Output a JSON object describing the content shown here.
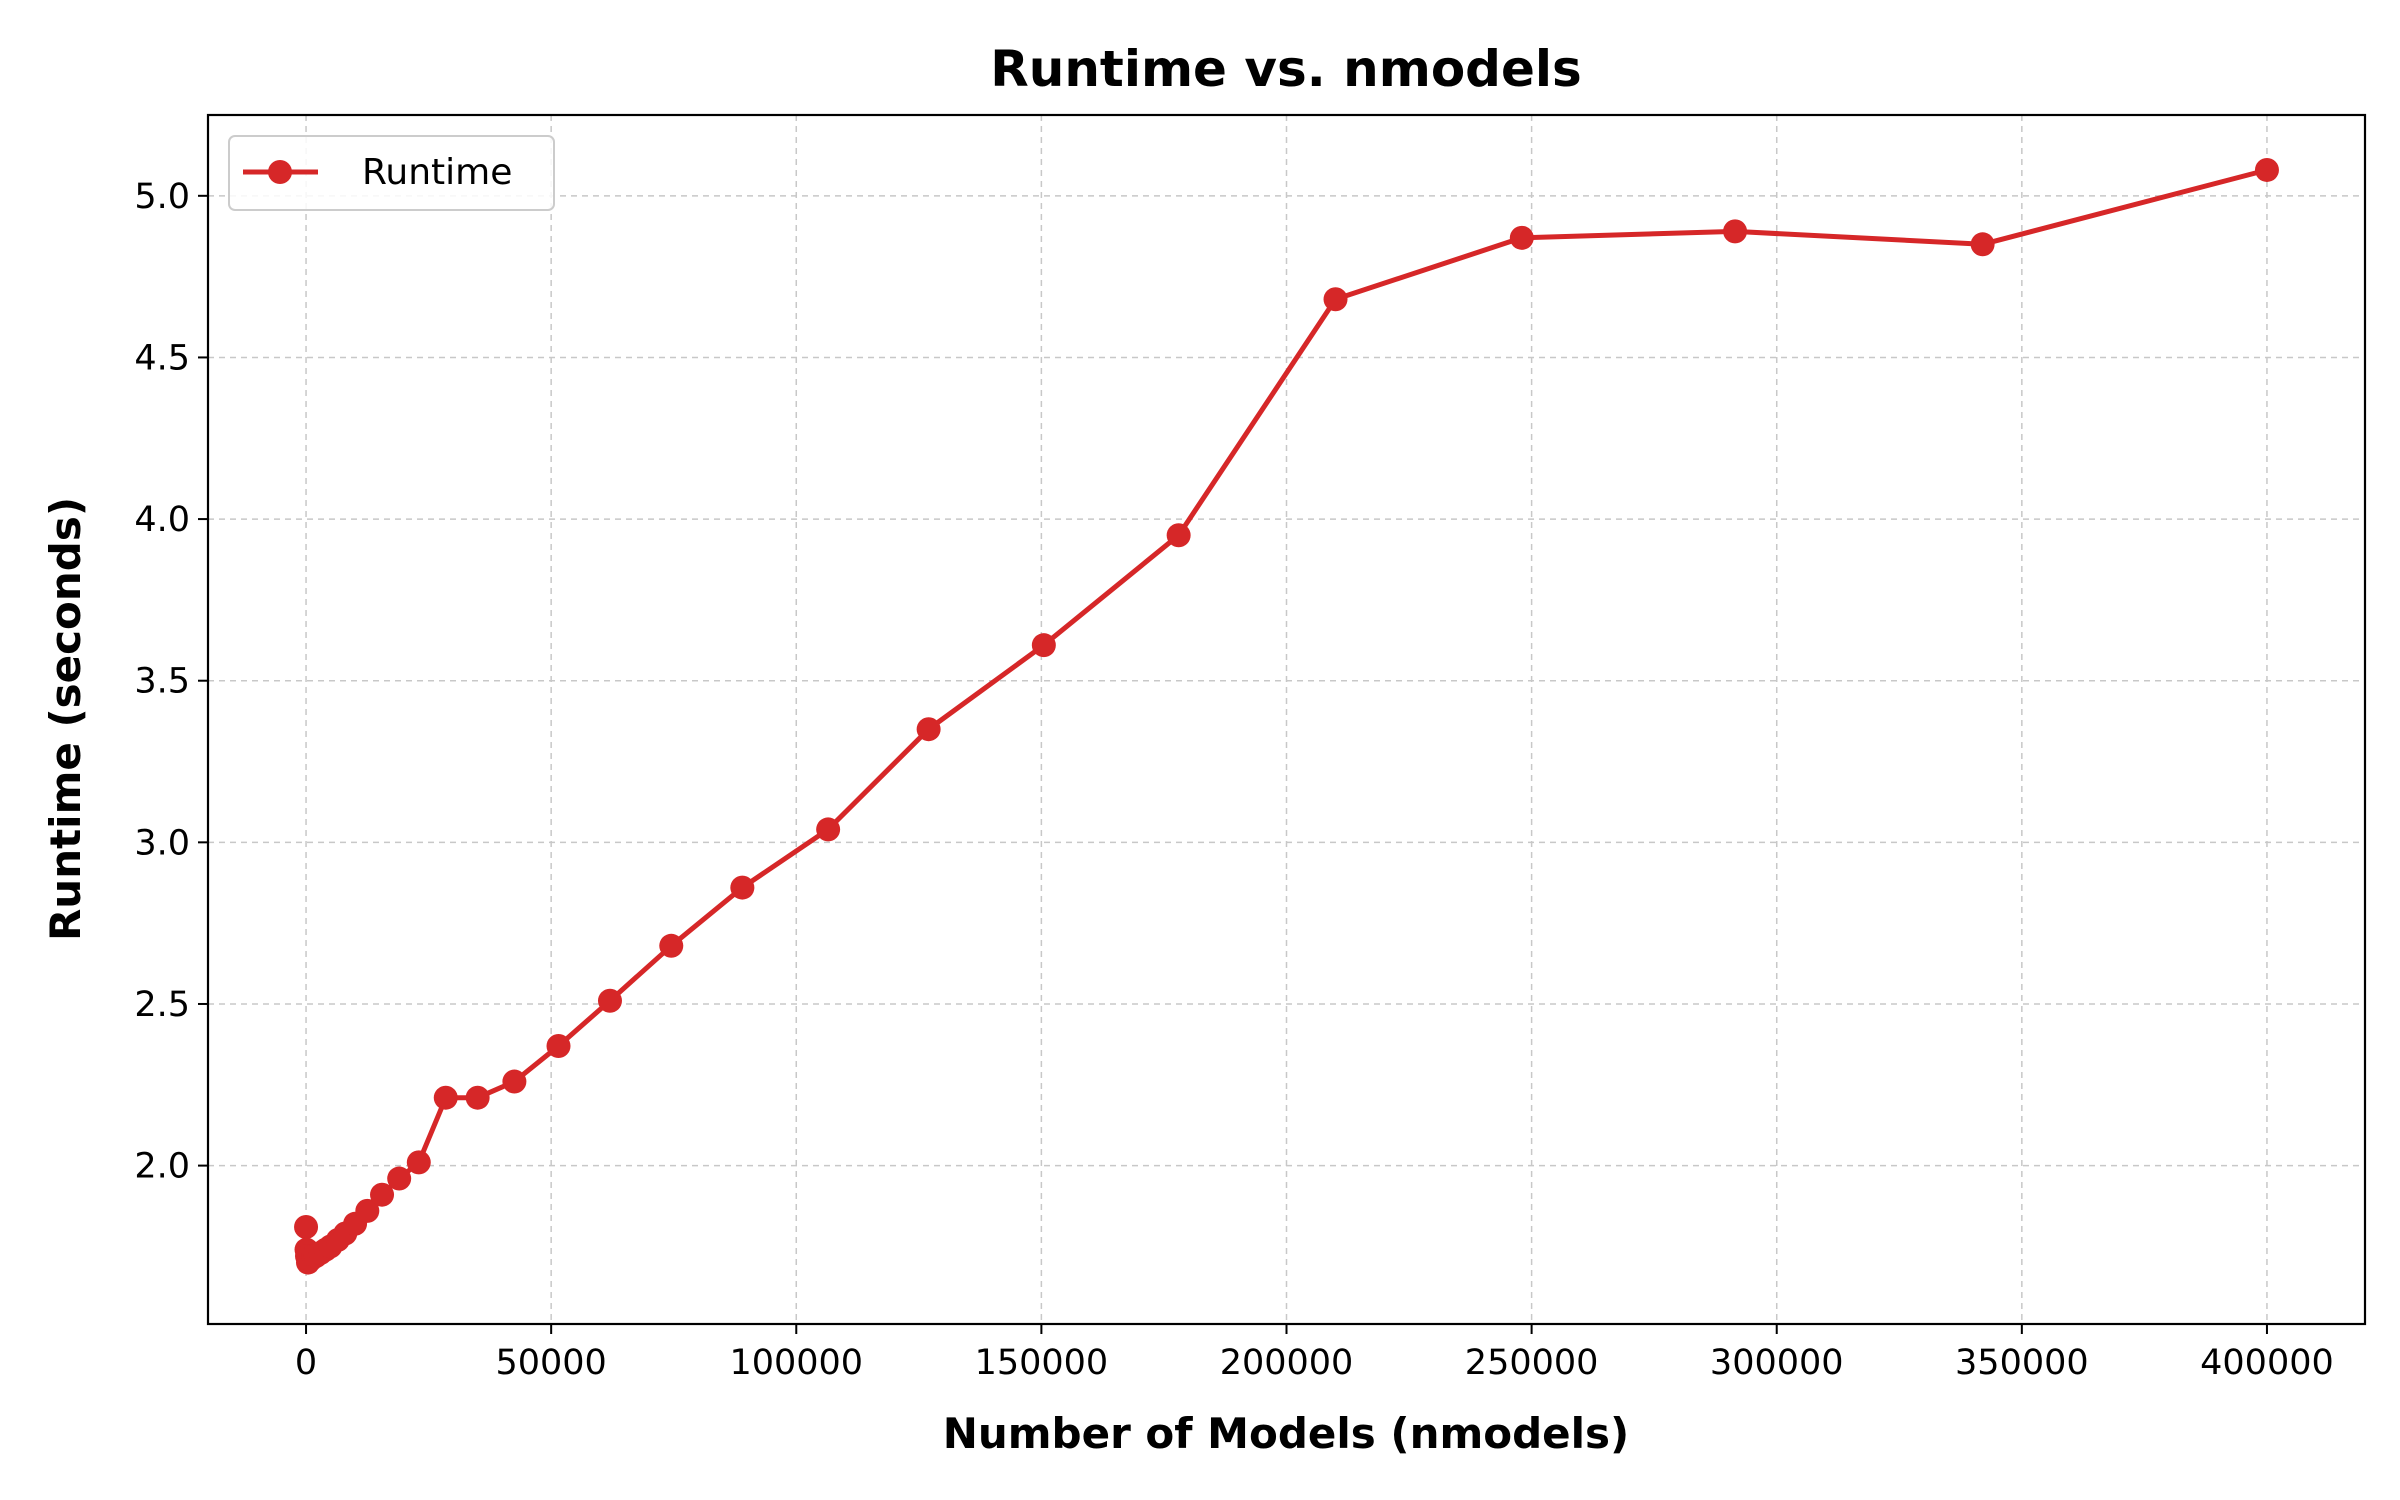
{
  "chart_data": {
    "type": "line",
    "title": "Runtime vs. nmodels",
    "xlabel": "Number of Models (nmodels)",
    "ylabel": "Runtime (seconds)",
    "xlim": [
      -20000,
      420000
    ],
    "ylim": [
      1.51,
      5.25
    ],
    "xticks": [
      0,
      50000,
      100000,
      150000,
      200000,
      250000,
      300000,
      350000,
      400000
    ],
    "xtick_labels": [
      "0",
      "50000",
      "100000",
      "150000",
      "200000",
      "250000",
      "300000",
      "350000",
      "400000"
    ],
    "yticks": [
      2.0,
      2.5,
      3.0,
      3.5,
      4.0,
      4.5,
      5.0
    ],
    "ytick_labels": [
      "2.0",
      "2.5",
      "3.0",
      "3.5",
      "4.0",
      "4.5",
      "5.0"
    ],
    "grid": true,
    "legend_position": "top-left",
    "series": [
      {
        "name": "Runtime",
        "color": "#d62728",
        "x": [
          0,
          100,
          200,
          400,
          700,
          1000,
          1500,
          2000,
          3000,
          4000,
          5000,
          6500,
          8000,
          10000,
          12500,
          15500,
          19000,
          23000,
          28500,
          35000,
          42500,
          51500,
          62000,
          74500,
          89000,
          106500,
          127000,
          150500,
          178000,
          210000,
          248000,
          291500,
          342000,
          400000
        ],
        "y": [
          1.81,
          1.74,
          1.72,
          1.7,
          1.71,
          1.71,
          1.72,
          1.72,
          1.73,
          1.74,
          1.75,
          1.77,
          1.79,
          1.82,
          1.86,
          1.91,
          1.96,
          2.01,
          2.21,
          2.21,
          2.26,
          2.37,
          2.51,
          2.68,
          2.86,
          3.04,
          3.35,
          3.61,
          3.95,
          4.68,
          4.87,
          4.89,
          4.85,
          5.08
        ]
      }
    ]
  }
}
